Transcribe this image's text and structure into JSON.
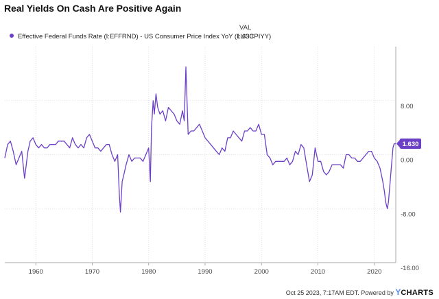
{
  "title": "Real Yields On Cash Are Positive Again",
  "legend": {
    "header": "VAL",
    "series_label": "Effective Federal Funds Rate (I:EFFRND) - US Consumer Price Index YoY (I:USCPIYY)",
    "series_value": "1.630",
    "color": "#6b3fc6"
  },
  "footer": {
    "timestamp": "Oct 25 2023, 7:17AM EDT.",
    "powered_by": "Powered by",
    "brand_y": "Y",
    "brand_rest": "CHARTS"
  },
  "chart_data": {
    "type": "line",
    "title": "Real Yields On Cash Are Positive Again",
    "xlabel": "",
    "ylabel": "",
    "xlim": [
      1954.5,
      2023.8
    ],
    "ylim": [
      -16,
      16
    ],
    "x_ticks": [
      1960,
      1970,
      1980,
      1990,
      2000,
      2010,
      2020
    ],
    "x_tick_labels": [
      "1960",
      "1970",
      "1980",
      "1990",
      "2000",
      "2010",
      "2020"
    ],
    "y_ticks": [
      8,
      0,
      -8,
      -16
    ],
    "y_tick_labels": [
      "8.00",
      "0.00",
      "-8.00",
      "-16.00"
    ],
    "last_value_label": "1.630",
    "series": [
      {
        "name": "Effective Federal Funds Rate (I:EFFRND) - US Consumer Price Index YoY (I:USCPIYY)",
        "color": "#6b3fc6",
        "x": [
          1954.5,
          1955.0,
          1955.5,
          1956.0,
          1956.5,
          1957.0,
          1957.5,
          1958.0,
          1958.3,
          1958.6,
          1959.0,
          1959.5,
          1960.0,
          1960.5,
          1961.0,
          1961.5,
          1962.0,
          1962.5,
          1963.0,
          1963.5,
          1964.0,
          1964.5,
          1965.0,
          1965.5,
          1966.0,
          1966.5,
          1967.0,
          1967.5,
          1968.0,
          1968.5,
          1969.0,
          1969.5,
          1970.0,
          1970.5,
          1971.0,
          1971.5,
          1972.0,
          1972.5,
          1973.0,
          1973.5,
          1974.0,
          1974.5,
          1974.8,
          1975.0,
          1975.3,
          1975.6,
          1976.0,
          1976.5,
          1977.0,
          1977.5,
          1978.0,
          1978.5,
          1979.0,
          1979.5,
          1980.0,
          1980.3,
          1980.5,
          1980.8,
          1981.0,
          1981.3,
          1981.6,
          1982.0,
          1982.5,
          1983.0,
          1983.5,
          1984.0,
          1984.5,
          1985.0,
          1985.5,
          1986.0,
          1986.3,
          1986.6,
          1987.0,
          1987.5,
          1988.0,
          1988.5,
          1989.0,
          1989.5,
          1990.0,
          1990.5,
          1991.0,
          1991.5,
          1992.0,
          1992.5,
          1993.0,
          1993.5,
          1994.0,
          1994.5,
          1995.0,
          1995.5,
          1996.0,
          1996.5,
          1997.0,
          1997.5,
          1998.0,
          1998.5,
          1999.0,
          1999.5,
          2000.0,
          2000.5,
          2001.0,
          2001.5,
          2002.0,
          2002.5,
          2003.0,
          2003.5,
          2004.0,
          2004.5,
          2005.0,
          2005.5,
          2006.0,
          2006.5,
          2007.0,
          2007.5,
          2008.0,
          2008.5,
          2009.0,
          2009.5,
          2010.0,
          2010.5,
          2011.0,
          2011.5,
          2012.0,
          2012.5,
          2013.0,
          2013.5,
          2014.0,
          2014.5,
          2015.0,
          2015.5,
          2016.0,
          2016.5,
          2017.0,
          2017.5,
          2018.0,
          2018.5,
          2019.0,
          2019.5,
          2020.0,
          2020.5,
          2021.0,
          2021.5,
          2021.8,
          2022.0,
          2022.3,
          2022.5,
          2022.8,
          2023.0,
          2023.3,
          2023.5,
          2023.8
        ],
        "y": [
          -0.5,
          1.5,
          2.0,
          0.5,
          -1.5,
          -0.5,
          0.5,
          -3.5,
          -1.5,
          0.5,
          2.0,
          2.5,
          1.5,
          1.0,
          1.5,
          1.0,
          1.0,
          1.5,
          1.5,
          1.5,
          2.0,
          2.0,
          2.0,
          1.5,
          1.0,
          2.5,
          1.5,
          1.0,
          1.5,
          1.0,
          2.5,
          3.0,
          2.0,
          1.0,
          1.0,
          0.5,
          1.0,
          1.5,
          1.5,
          0.0,
          -1.0,
          0.0,
          -6.0,
          -8.5,
          -4.0,
          -3.0,
          -1.5,
          0.0,
          -1.0,
          -0.5,
          -0.5,
          -0.5,
          -1.0,
          0.0,
          1.0,
          -4.0,
          4.0,
          8.0,
          6.0,
          9.0,
          7.0,
          6.0,
          6.5,
          5.0,
          7.0,
          6.5,
          6.0,
          5.0,
          4.5,
          6.5,
          5.0,
          13.0,
          3.0,
          3.5,
          3.5,
          4.0,
          4.5,
          3.5,
          2.5,
          2.0,
          1.5,
          1.0,
          0.5,
          0.0,
          1.0,
          0.5,
          2.5,
          2.5,
          3.5,
          3.0,
          2.5,
          2.0,
          3.5,
          3.5,
          4.0,
          3.5,
          3.5,
          4.5,
          3.0,
          3.0,
          0.0,
          -0.5,
          -1.5,
          -1.0,
          -1.0,
          -1.0,
          -1.0,
          -0.5,
          -1.5,
          -1.0,
          0.5,
          0.0,
          1.5,
          1.0,
          -1.5,
          -4.0,
          -3.0,
          1.0,
          -1.0,
          -1.0,
          -2.5,
          -3.0,
          -2.5,
          -1.5,
          -1.5,
          -1.5,
          -1.5,
          -2.0,
          0.0,
          0.0,
          -0.5,
          -0.5,
          -1.0,
          -1.0,
          -0.5,
          0.0,
          0.5,
          0.5,
          -0.5,
          -1.0,
          -2.0,
          -4.0,
          -5.5,
          -7.0,
          -8.0,
          -7.0,
          -4.0,
          -2.0,
          1.0,
          1.6,
          1.63
        ]
      }
    ]
  }
}
